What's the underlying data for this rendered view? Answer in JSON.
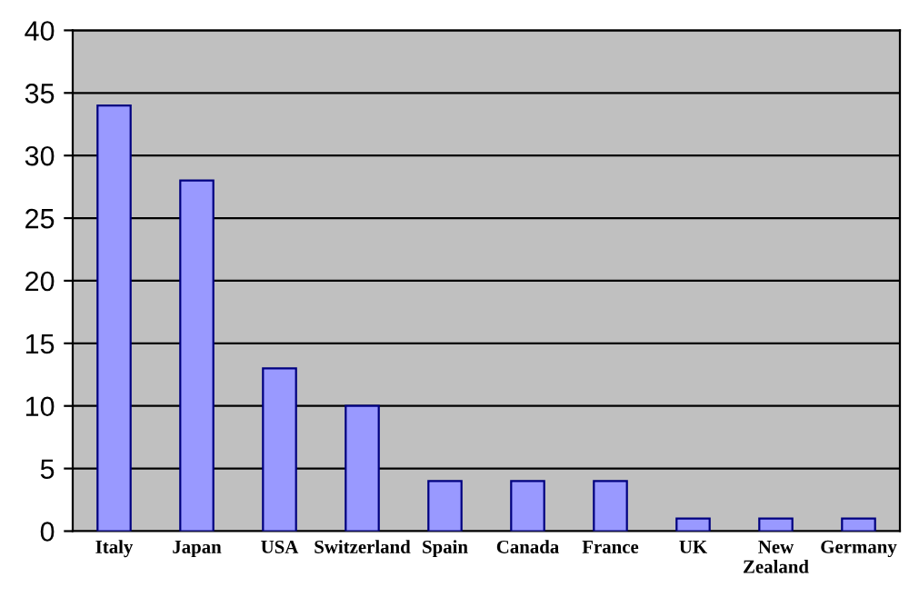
{
  "chart_data": {
    "type": "bar",
    "categories": [
      "Italy",
      "Japan",
      "USA",
      "Switzerland",
      "Spain",
      "Canada",
      "France",
      "UK",
      "New\nZealand",
      "Germany"
    ],
    "values": [
      34,
      28,
      13,
      10,
      4,
      4,
      4,
      1,
      1,
      1
    ],
    "color": "#9999ff",
    "ylim": [
      0,
      40
    ],
    "yticks": [
      0,
      5,
      10,
      15,
      20,
      25,
      30,
      35,
      40
    ],
    "grid": "y",
    "legend": false
  }
}
